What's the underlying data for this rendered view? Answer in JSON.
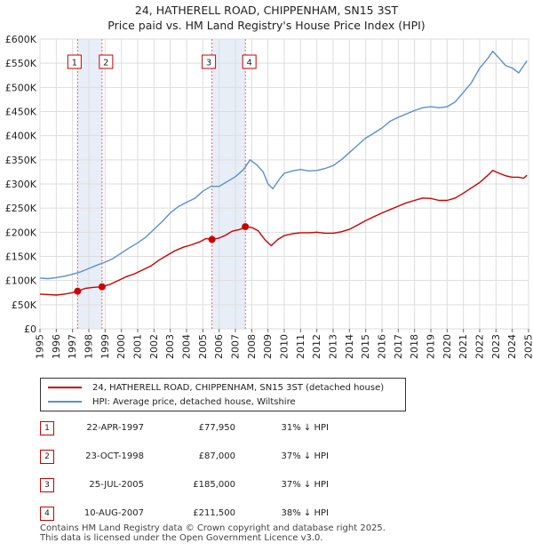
{
  "header": {
    "title": "24, HATHERELL ROAD, CHIPPENHAM, SN15 3ST",
    "subtitle": "Price paid vs. HM Land Registry's House Price Index (HPI)"
  },
  "chart_data": {
    "type": "line",
    "title": "24, HATHERELL ROAD, CHIPPENHAM, SN15 3ST",
    "subtitle": "Price paid vs. HM Land Registry's House Price Index (HPI)",
    "xlabel": "",
    "ylabel": "",
    "xlim": [
      1995,
      2025
    ],
    "ylim": [
      0,
      600000
    ],
    "grid": true,
    "y_ticks": [
      {
        "value": 0,
        "label": "£0"
      },
      {
        "value": 50000,
        "label": "£50K"
      },
      {
        "value": 100000,
        "label": "£100K"
      },
      {
        "value": 150000,
        "label": "£150K"
      },
      {
        "value": 200000,
        "label": "£200K"
      },
      {
        "value": 250000,
        "label": "£250K"
      },
      {
        "value": 300000,
        "label": "£300K"
      },
      {
        "value": 350000,
        "label": "£350K"
      },
      {
        "value": 400000,
        "label": "£400K"
      },
      {
        "value": 450000,
        "label": "£450K"
      },
      {
        "value": 500000,
        "label": "£500K"
      },
      {
        "value": 550000,
        "label": "£550K"
      },
      {
        "value": 600000,
        "label": "£600K"
      }
    ],
    "x_ticks": [
      "1995",
      "1996",
      "1997",
      "1998",
      "1999",
      "2000",
      "2001",
      "2002",
      "2003",
      "2004",
      "2005",
      "2006",
      "2007",
      "2008",
      "2009",
      "2010",
      "2011",
      "2012",
      "2013",
      "2014",
      "2015",
      "2016",
      "2017",
      "2018",
      "2019",
      "2020",
      "2021",
      "2022",
      "2023",
      "2024",
      "2025"
    ],
    "series": [
      {
        "name": "24, HATHERELL ROAD, CHIPPENHAM, SN15 3ST (detached house)",
        "color": "#cc0000",
        "x": [
          1995.0,
          1995.5,
          1996.0,
          1996.5,
          1997.0,
          1997.31,
          1997.8,
          1998.3,
          1998.81,
          1999.3,
          1999.8,
          2000.3,
          2000.8,
          2001.3,
          2001.8,
          2002.3,
          2002.8,
          2003.3,
          2003.8,
          2004.3,
          2004.8,
          2005.2,
          2005.56,
          2006.0,
          2006.4,
          2006.8,
          2007.3,
          2007.61,
          2008.0,
          2008.4,
          2008.8,
          2009.2,
          2009.6,
          2010.0,
          2010.5,
          2011.0,
          2011.5,
          2012.0,
          2012.5,
          2013.0,
          2013.5,
          2014.0,
          2014.5,
          2015.0,
          2015.5,
          2016.0,
          2016.5,
          2017.0,
          2017.5,
          2018.0,
          2018.5,
          2019.0,
          2019.5,
          2020.0,
          2020.5,
          2021.0,
          2021.5,
          2022.0,
          2022.5,
          2022.8,
          2023.2,
          2023.6,
          2024.0,
          2024.4,
          2024.7,
          2024.9
        ],
        "values": [
          72000,
          71000,
          70000,
          72000,
          75000,
          77950,
          84000,
          86000,
          87000,
          92000,
          100000,
          108000,
          114000,
          122000,
          130000,
          142000,
          152000,
          162000,
          169000,
          174000,
          180000,
          187000,
          185000,
          188000,
          194000,
          202000,
          206000,
          211500,
          210000,
          203000,
          185000,
          172000,
          185000,
          193000,
          197000,
          199000,
          199000,
          200000,
          198000,
          198000,
          201000,
          206000,
          215000,
          224000,
          232000,
          240000,
          247000,
          254000,
          261000,
          266000,
          271000,
          270000,
          266000,
          266000,
          271000,
          281000,
          292000,
          303000,
          318000,
          328000,
          322000,
          317000,
          314000,
          314000,
          312000,
          318000
        ]
      },
      {
        "name": "HPI: Average price, detached house, Wiltshire",
        "color": "#5b8fcf",
        "x": [
          1995.0,
          1995.5,
          1996.0,
          1996.5,
          1997.0,
          1997.5,
          1998.0,
          1998.5,
          1999.0,
          1999.5,
          2000.0,
          2000.5,
          2001.0,
          2001.5,
          2002.0,
          2002.5,
          2003.0,
          2003.5,
          2004.0,
          2004.5,
          2005.0,
          2005.5,
          2006.0,
          2006.5,
          2007.0,
          2007.5,
          2007.9,
          2008.3,
          2008.7,
          2009.0,
          2009.3,
          2009.7,
          2010.0,
          2010.5,
          2011.0,
          2011.5,
          2012.0,
          2012.5,
          2013.0,
          2013.5,
          2014.0,
          2014.5,
          2015.0,
          2015.5,
          2016.0,
          2016.5,
          2017.0,
          2017.5,
          2018.0,
          2018.5,
          2019.0,
          2019.5,
          2020.0,
          2020.5,
          2021.0,
          2021.5,
          2022.0,
          2022.5,
          2022.8,
          2023.2,
          2023.6,
          2024.0,
          2024.4,
          2024.7,
          2024.9
        ],
        "values": [
          105000,
          104000,
          106000,
          109000,
          113000,
          118000,
          125000,
          132000,
          138000,
          146000,
          157000,
          168000,
          178000,
          190000,
          206000,
          222000,
          240000,
          253000,
          262000,
          270000,
          285000,
          295000,
          295000,
          305000,
          315000,
          330000,
          350000,
          340000,
          325000,
          300000,
          290000,
          310000,
          322000,
          327000,
          330000,
          327000,
          328000,
          332000,
          338000,
          350000,
          365000,
          380000,
          395000,
          405000,
          416000,
          430000,
          438000,
          445000,
          452000,
          458000,
          460000,
          458000,
          460000,
          470000,
          490000,
          510000,
          540000,
          560000,
          575000,
          560000,
          545000,
          540000,
          530000,
          545000,
          555000
        ]
      }
    ],
    "annotations": [
      {
        "label": "1",
        "x": 1997.31,
        "y": 77950
      },
      {
        "label": "2",
        "x": 1998.81,
        "y": 87000
      },
      {
        "label": "3",
        "x": 2005.56,
        "y": 185000
      },
      {
        "label": "4",
        "x": 2007.61,
        "y": 211500
      }
    ]
  },
  "legend": {
    "items": [
      {
        "label": "24, HATHERELL ROAD, CHIPPENHAM, SN15 3ST (detached house)",
        "color": "#cc0000"
      },
      {
        "label": "HPI: Average price, detached house, Wiltshire",
        "color": "#5b8fcf"
      }
    ]
  },
  "sales": [
    {
      "num": "1",
      "date": "22-APR-1997",
      "price": "£77,950",
      "diff": "31% ↓ HPI"
    },
    {
      "num": "2",
      "date": "23-OCT-1998",
      "price": "£87,000",
      "diff": "37% ↓ HPI"
    },
    {
      "num": "3",
      "date": "25-JUL-2005",
      "price": "£185,000",
      "diff": "37% ↓ HPI"
    },
    {
      "num": "4",
      "date": "10-AUG-2007",
      "price": "£211,500",
      "diff": "38% ↓ HPI"
    }
  ],
  "footer": {
    "line1": "Contains HM Land Registry data © Crown copyright and database right 2025.",
    "line2": "This data is licensed under the Open Government Licence v3.0."
  }
}
